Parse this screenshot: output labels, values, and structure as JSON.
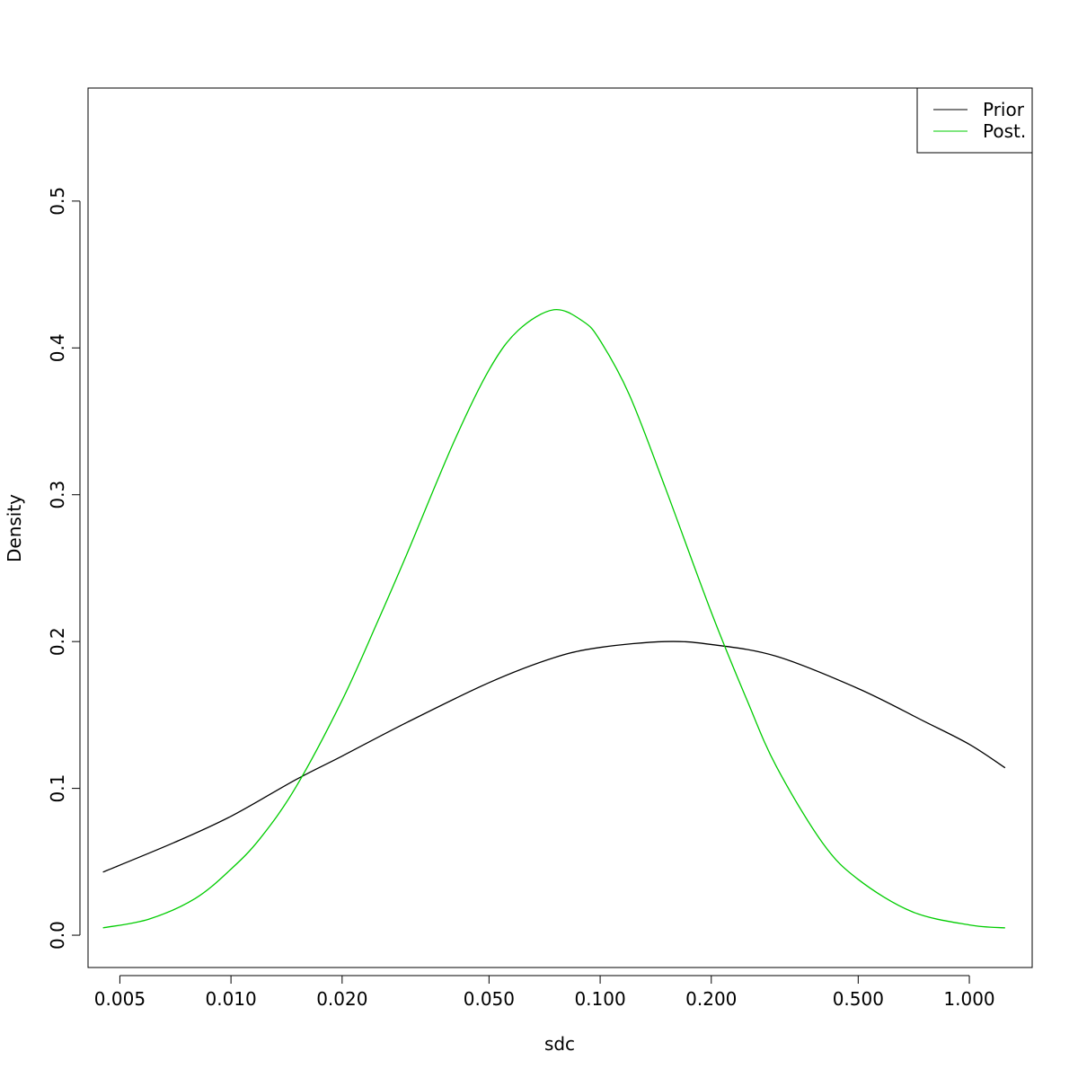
{
  "chart_data": {
    "type": "line",
    "xlabel": "sdc",
    "ylabel": "Density",
    "x_scale": "log",
    "xlim": [
      0.0041,
      1.48
    ],
    "ylim": [
      -0.022,
      0.577
    ],
    "x_ticks": [
      0.005,
      0.01,
      0.02,
      0.05,
      0.1,
      0.2,
      0.5,
      1.0
    ],
    "x_tick_labels": [
      "0.005",
      "0.010",
      "0.020",
      "0.050",
      "0.100",
      "0.200",
      "0.500",
      "1.000"
    ],
    "y_ticks": [
      0.0,
      0.1,
      0.2,
      0.3,
      0.4,
      0.5
    ],
    "y_tick_labels": [
      "0.0",
      "0.1",
      "0.2",
      "0.3",
      "0.4",
      "0.5"
    ],
    "grid": false,
    "legend_position": "top-right",
    "series": [
      {
        "name": "Prior",
        "color": "#000000",
        "x": [
          0.0045,
          0.007,
          0.01,
          0.015,
          0.02,
          0.03,
          0.05,
          0.075,
          0.1,
          0.15,
          0.2,
          0.3,
          0.5,
          0.75,
          1.0,
          1.25
        ],
        "y": [
          0.043,
          0.063,
          0.081,
          0.106,
          0.122,
          0.145,
          0.172,
          0.189,
          0.196,
          0.2,
          0.198,
          0.19,
          0.168,
          0.146,
          0.13,
          0.114
        ]
      },
      {
        "name": "Post.",
        "color": "#00cc00",
        "x": [
          0.0045,
          0.006,
          0.008,
          0.01,
          0.012,
          0.015,
          0.02,
          0.025,
          0.03,
          0.04,
          0.05,
          0.06,
          0.075,
          0.09,
          0.1,
          0.12,
          0.15,
          0.2,
          0.25,
          0.3,
          0.4,
          0.5,
          0.7,
          1.0,
          1.25
        ],
        "y": [
          0.005,
          0.011,
          0.025,
          0.045,
          0.066,
          0.101,
          0.16,
          0.214,
          0.26,
          0.335,
          0.385,
          0.412,
          0.426,
          0.418,
          0.405,
          0.368,
          0.305,
          0.22,
          0.16,
          0.115,
          0.063,
          0.038,
          0.016,
          0.007,
          0.005
        ]
      }
    ]
  }
}
